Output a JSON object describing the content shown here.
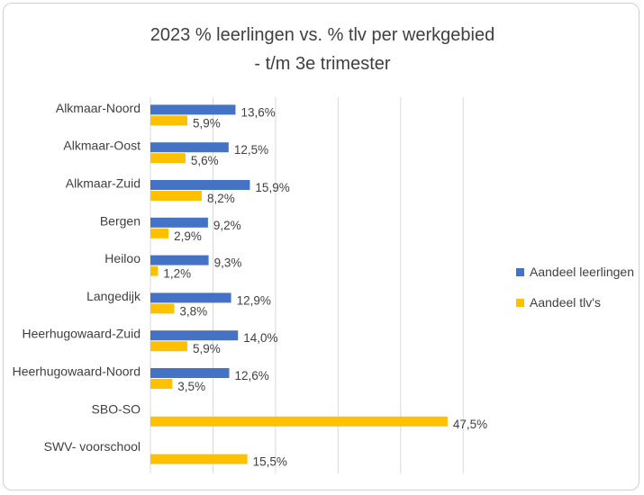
{
  "chart_data": {
    "type": "bar",
    "orientation": "horizontal",
    "title": [
      "2023 % leerlingen vs. % tlv per werkgebied",
      "- t/m 3e trimester"
    ],
    "categories": [
      "Alkmaar-Noord",
      "Alkmaar-Oost",
      "Alkmaar-Zuid",
      "Bergen",
      "Heiloo",
      "Langedijk",
      "Heerhugowaard-Zuid",
      "Heerhugowaard-Noord",
      "SBO-SO",
      "SWV- voorschool"
    ],
    "series": [
      {
        "name": "Aandeel leerlingen",
        "color": "#4472C4",
        "values": [
          13.6,
          12.5,
          15.9,
          9.2,
          9.3,
          12.9,
          14.0,
          12.6,
          null,
          null
        ],
        "labels": [
          "13,6%",
          "12,5%",
          "15,9%",
          "9,2%",
          "9,3%",
          "12,9%",
          "14,0%",
          "12,6%",
          "",
          ""
        ]
      },
      {
        "name": "Aandeel tlv's",
        "color": "#FFC000",
        "values": [
          5.9,
          5.6,
          8.2,
          2.9,
          1.2,
          3.8,
          5.9,
          3.5,
          47.5,
          15.5
        ],
        "labels": [
          "5,9%",
          "5,6%",
          "8,2%",
          "2,9%",
          "1,2%",
          "3,8%",
          "5,9%",
          "3,5%",
          "47,5%",
          "15,5%"
        ]
      }
    ],
    "xlim": [
      0,
      55
    ],
    "grid": true,
    "legend_position": "right"
  }
}
